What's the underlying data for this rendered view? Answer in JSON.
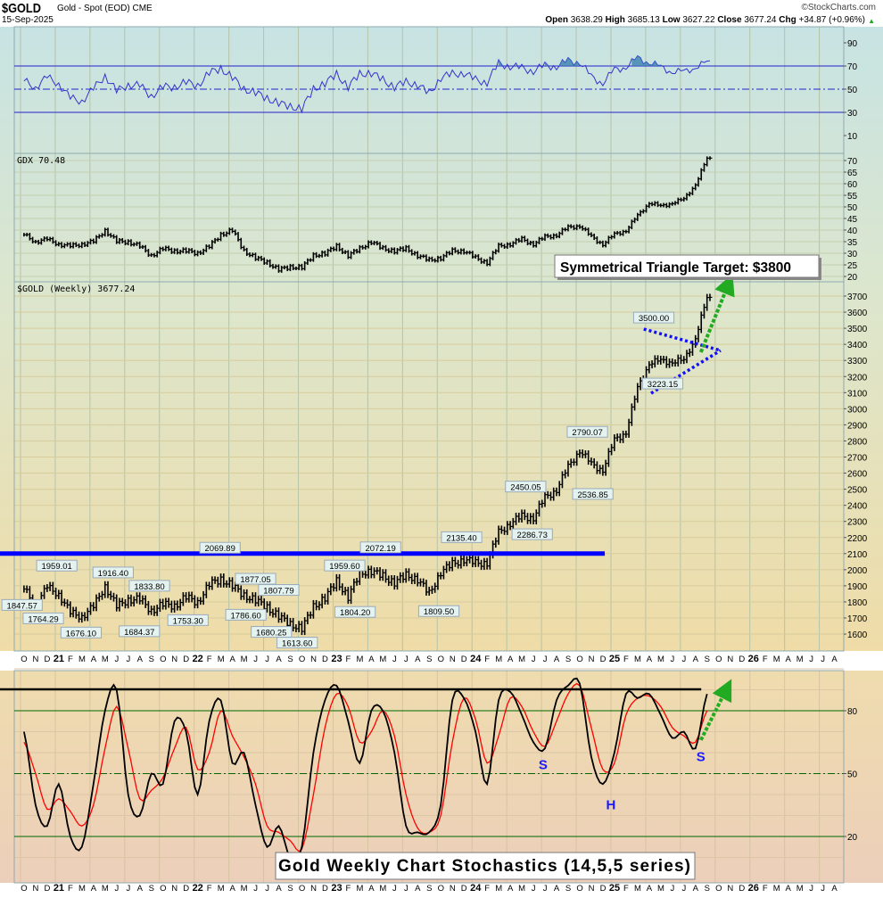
{
  "header": {
    "symbol": "$GOLD",
    "description": "Gold - Spot (EOD) CME",
    "date": "15-Sep-2025",
    "brand": "©StockCharts.com",
    "open_label": "Open",
    "open": "3638.29",
    "high_label": "High",
    "high": "3685.13",
    "low_label": "Low",
    "low": "3627.22",
    "close_label": "Close",
    "close": "3677.24",
    "chg_label": "Chg",
    "chg": "+34.87 (+0.96%)",
    "chg_icon": "up-triangle-icon"
  },
  "colors": {
    "rsi_line": "#3333cc",
    "rsi_overbought_fill": "#3a7fb0",
    "price": "#000000",
    "stoch_k": "#000000",
    "stoch_d": "#ff0000",
    "resistance_blue": "#0000ff",
    "triangle": "#1010ff",
    "arrow": "#22aa22",
    "stoch_levels": "#006600"
  },
  "chart_data": [
    {
      "type": "line",
      "panel": "rsi",
      "ylim": [
        0,
        100
      ],
      "y_ticks": [
        "90",
        "70",
        "50",
        "30",
        "10"
      ],
      "y_tick_values": [
        90,
        70,
        50,
        30,
        10
      ],
      "ref_lines": [
        70,
        50,
        30
      ],
      "values": [
        57,
        52,
        60,
        55,
        42,
        40,
        50,
        62,
        48,
        54,
        53,
        44,
        52,
        52,
        56,
        53,
        64,
        68,
        60,
        50,
        47,
        42,
        38,
        35,
        33,
        50,
        55,
        63,
        52,
        63,
        64,
        58,
        52,
        56,
        54,
        46,
        60,
        63,
        64,
        58,
        56,
        72,
        70,
        68,
        66,
        70,
        70,
        74,
        74,
        60,
        56,
        66,
        70,
        76,
        74,
        68,
        66,
        64,
        70,
        72
      ]
    },
    {
      "type": "line",
      "panel": "gdx",
      "label": "GDX 70.48",
      "ylim": [
        17,
        76
      ],
      "y_ticks": [
        "70",
        "65",
        "60",
        "55",
        "50",
        "45",
        "40",
        "35",
        "30",
        "25",
        "20"
      ],
      "y_tick_values": [
        70,
        65,
        60,
        55,
        50,
        45,
        40,
        35,
        30,
        25,
        20
      ],
      "values": [
        38,
        35,
        36,
        34,
        33,
        34,
        35,
        40,
        35,
        35,
        33,
        29,
        32,
        31,
        31,
        30,
        33,
        38,
        40,
        31,
        28,
        26,
        23,
        24,
        24,
        29,
        30,
        33,
        29,
        32,
        35,
        32,
        31,
        32,
        29,
        27,
        28,
        31,
        31,
        28,
        26,
        33,
        34,
        36,
        34,
        37,
        38,
        41,
        42,
        37,
        34,
        38,
        40,
        46,
        52,
        50,
        52,
        53,
        60,
        70.5
      ]
    },
    {
      "type": "bar",
      "panel": "price",
      "label": "$GOLD (Weekly) 3677.24",
      "ylim": [
        1530,
        3790
      ],
      "y_ticks": [
        "3700",
        "3600",
        "3500",
        "3400",
        "3300",
        "3200",
        "3100",
        "3000",
        "2900",
        "2800",
        "2700",
        "2600",
        "2500",
        "2400",
        "2300",
        "2200",
        "2100",
        "2000",
        "1900",
        "1800",
        "1700",
        "1600"
      ],
      "y_tick_values": [
        3700,
        3600,
        3500,
        3400,
        3300,
        3200,
        3100,
        3000,
        2900,
        2800,
        2700,
        2600,
        2500,
        2400,
        2300,
        2200,
        2100,
        2000,
        1900,
        1800,
        1700,
        1600
      ],
      "start": "2020-10",
      "values": [
        1880,
        1780,
        1890,
        1850,
        1730,
        1710,
        1770,
        1900,
        1770,
        1815,
        1815,
        1745,
        1785,
        1775,
        1830,
        1795,
        1910,
        1940,
        1900,
        1840,
        1810,
        1765,
        1710,
        1660,
        1635,
        1770,
        1825,
        1930,
        1830,
        1980,
        1990,
        1960,
        1920,
        1965,
        1940,
        1850,
        1985,
        2035,
        2065,
        2040,
        2045,
        2230,
        2290,
        2330,
        2325,
        2445,
        2500,
        2635,
        2745,
        2650,
        2625,
        2800,
        2860,
        3120,
        3290,
        3290,
        3300,
        3290,
        3450,
        3677
      ],
      "price_labels": [
        {
          "text": "1847.57",
          "date": "2020-10-05",
          "value": 1847.57,
          "pos": "below"
        },
        {
          "text": "1959.01",
          "date": "2021-01-05",
          "value": 1959.01,
          "pos": "above"
        },
        {
          "text": "1764.29",
          "date": "2020-11-30",
          "value": 1764.29,
          "pos": "below"
        },
        {
          "text": "1676.10",
          "date": "2021-03-08",
          "value": 1676.1,
          "pos": "below"
        },
        {
          "text": "1916.40",
          "date": "2021-06-01",
          "value": 1916.4,
          "pos": "above"
        },
        {
          "text": "1684.37",
          "date": "2021-08-09",
          "value": 1684.37,
          "pos": "below"
        },
        {
          "text": "1833.80",
          "date": "2021-09-05",
          "value": 1833.8,
          "pos": "above"
        },
        {
          "text": "1753.30",
          "date": "2021-12-15",
          "value": 1753.3,
          "pos": "below"
        },
        {
          "text": "2069.89",
          "date": "2022-03-08",
          "value": 2069.89,
          "pos": "above"
        },
        {
          "text": "1786.60",
          "date": "2022-05-15",
          "value": 1786.6,
          "pos": "below"
        },
        {
          "text": "1877.05",
          "date": "2022-06-10",
          "value": 1877.05,
          "pos": "above"
        },
        {
          "text": "1680.25",
          "date": "2022-07-21",
          "value": 1680.25,
          "pos": "below"
        },
        {
          "text": "1807.79",
          "date": "2022-08-10",
          "value": 1807.79,
          "pos": "above"
        },
        {
          "text": "1613.60",
          "date": "2022-09-28",
          "value": 1613.6,
          "pos": "below"
        },
        {
          "text": "1959.60",
          "date": "2023-02-01",
          "value": 1959.6,
          "pos": "above"
        },
        {
          "text": "1804.20",
          "date": "2023-02-28",
          "value": 1804.2,
          "pos": "below"
        },
        {
          "text": "2072.19",
          "date": "2023-05-04",
          "value": 2072.19,
          "pos": "above"
        },
        {
          "text": "1809.50",
          "date": "2023-10-05",
          "value": 1809.5,
          "pos": "below"
        },
        {
          "text": "2135.40",
          "date": "2023-12-04",
          "value": 2135.4,
          "pos": "above"
        },
        {
          "text": "2450.05",
          "date": "2024-05-20",
          "value": 2450.05,
          "pos": "above"
        },
        {
          "text": "2286.73",
          "date": "2024-06-07",
          "value": 2286.73,
          "pos": "below"
        },
        {
          "text": "2790.07",
          "date": "2024-10-30",
          "value": 2790.07,
          "pos": "above"
        },
        {
          "text": "2536.85",
          "date": "2024-11-14",
          "value": 2536.85,
          "pos": "below"
        },
        {
          "text": "3500.00",
          "date": "2025-04-22",
          "value": 3500.0,
          "pos": "above"
        },
        {
          "text": "3223.15",
          "date": "2025-05-15",
          "value": 3223.15,
          "pos": "below"
        }
      ],
      "resistance": {
        "value": 2100,
        "to": "2024-12-15"
      },
      "triangle": [
        {
          "from": [
            "2025-03-26",
            3495
          ],
          "to": [
            "2025-10-15",
            3362
          ]
        },
        {
          "from": [
            "2025-04-15",
            3096
          ],
          "to": [
            "2025-10-15",
            3362
          ]
        }
      ],
      "arrow": {
        "from": [
          "2025-08-24",
          3351
        ],
        "to": [
          "2025-11-06",
          3778
        ]
      },
      "annotation": "Symmetrical Triangle Target: $3800"
    },
    {
      "type": "line",
      "panel": "stochastics",
      "ylim": [
        -2,
        110
      ],
      "y_ticks": [
        "80",
        "50",
        "20"
      ],
      "y_tick_values": [
        80,
        50,
        20
      ],
      "k_values": [
        70,
        35,
        25,
        45,
        20,
        15,
        45,
        80,
        90,
        40,
        30,
        50,
        45,
        75,
        70,
        40,
        75,
        85,
        55,
        60,
        35,
        15,
        25,
        10,
        15,
        60,
        85,
        92,
        75,
        55,
        80,
        80,
        60,
        25,
        22,
        22,
        35,
        85,
        86,
        70,
        45,
        85,
        89,
        78,
        65,
        62,
        85,
        92,
        93,
        58,
        45,
        60,
        88,
        86,
        88,
        78,
        67,
        70,
        62,
        88
      ],
      "d_values": [
        65,
        50,
        33,
        38,
        32,
        25,
        35,
        62,
        82,
        62,
        38,
        42,
        48,
        62,
        72,
        52,
        60,
        80,
        68,
        58,
        45,
        25,
        22,
        18,
        14,
        40,
        72,
        88,
        82,
        65,
        70,
        80,
        68,
        40,
        24,
        22,
        30,
        65,
        86,
        76,
        55,
        68,
        86,
        82,
        70,
        63,
        75,
        88,
        92,
        72,
        52,
        55,
        78,
        86,
        87,
        82,
        72,
        68,
        65,
        80
      ],
      "resistance": {
        "value": 90.2,
        "to": "2025-08-25"
      },
      "arrow": {
        "from": [
          "2025-08-24",
          66
        ],
        "to": [
          "2025-10-31",
          90.6
        ]
      },
      "pattern_labels": [
        {
          "text": "S",
          "date": "2024-07-05",
          "value": 58
        },
        {
          "text": "H",
          "date": "2025-01-01",
          "value": 39
        },
        {
          "text": "S",
          "date": "2025-08-24",
          "value": 62
        }
      ],
      "annotation": "Gold Weekly Chart Stochastics (14,5,5 series)"
    }
  ],
  "x_axis": {
    "ticks": [
      "O",
      "N",
      "D",
      "21",
      "F",
      "M",
      "A",
      "M",
      "J",
      "J",
      "A",
      "S",
      "O",
      "N",
      "D",
      "22",
      "F",
      "M",
      "A",
      "M",
      "J",
      "J",
      "A",
      "S",
      "O",
      "N",
      "D",
      "23",
      "F",
      "M",
      "A",
      "M",
      "J",
      "J",
      "A",
      "S",
      "O",
      "N",
      "D",
      "24",
      "F",
      "M",
      "A",
      "M",
      "J",
      "J",
      "A",
      "S",
      "O",
      "N",
      "D",
      "25",
      "F",
      "M",
      "A",
      "M",
      "J",
      "J",
      "A",
      "S",
      "O",
      "N",
      "D",
      "26",
      "F",
      "M",
      "A",
      "M",
      "J",
      "J",
      "A"
    ]
  }
}
